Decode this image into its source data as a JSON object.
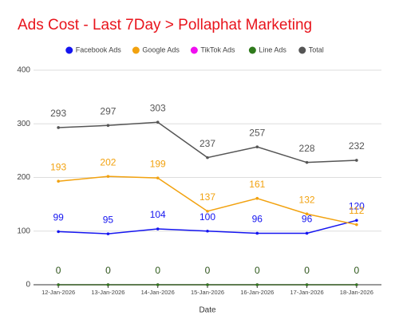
{
  "chart_data": {
    "type": "line",
    "title": "Ads Cost - Last 7Day > Pollaphat Marketing",
    "x_label": "Date",
    "categories": [
      "12-Jan-2026",
      "13-Jan-2026",
      "14-Jan-2026",
      "15-Jan-2026",
      "16-Jan-2026",
      "17-Jan-2026",
      "18-Jan-2026"
    ],
    "series": [
      {
        "name": "Facebook Ads",
        "color": "#1515f0",
        "values": [
          99,
          95,
          104,
          100,
          96,
          96,
          120
        ]
      },
      {
        "name": "Google Ads",
        "color": "#f2a20f",
        "values": [
          193,
          202,
          199,
          137,
          161,
          132,
          112
        ]
      },
      {
        "name": "TikTok Ads",
        "color": "#f00ff0",
        "values": [
          0,
          0,
          0,
          0,
          0,
          0,
          0
        ]
      },
      {
        "name": "Line Ads",
        "color": "#2f7a1c",
        "values": [
          0,
          0,
          0,
          0,
          0,
          0,
          0
        ]
      },
      {
        "name": "Total",
        "color": "#555555",
        "values": [
          293,
          297,
          303,
          237,
          257,
          228,
          232
        ]
      }
    ],
    "ylim": [
      0,
      400
    ],
    "yticks": [
      0,
      100,
      200,
      300,
      400
    ],
    "grid": true,
    "data_labels": true
  }
}
